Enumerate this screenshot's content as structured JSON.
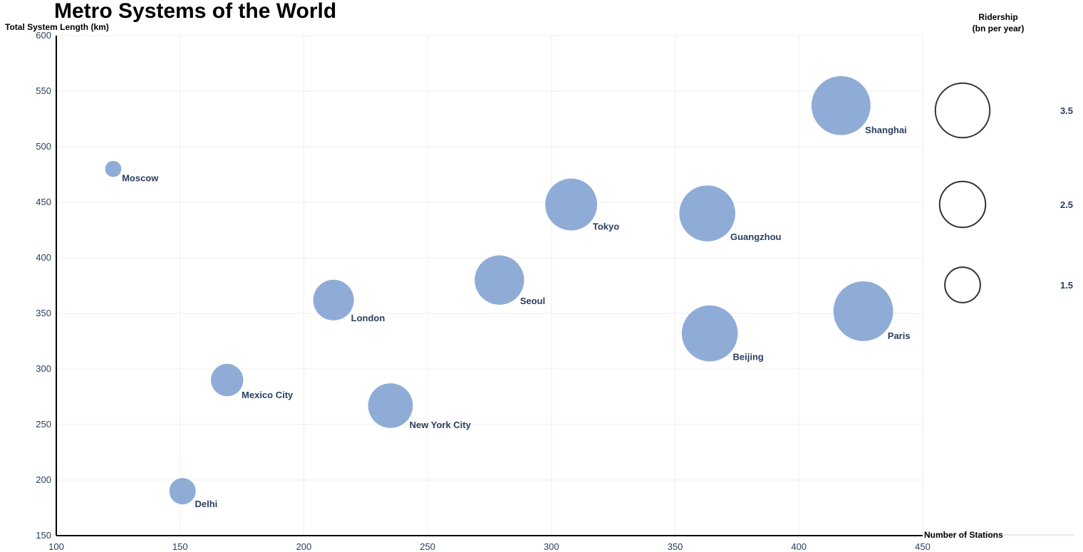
{
  "chart_data": {
    "type": "scatter",
    "title": "Metro Systems of the World",
    "xlabel": "Number of Stations",
    "ylabel": "Total System Length (km)",
    "xlim": [
      100,
      450
    ],
    "ylim": [
      150,
      600
    ],
    "x_ticks": [
      "100",
      "150",
      "200",
      "250",
      "300",
      "350",
      "400",
      "450"
    ],
    "y_ticks": [
      "150",
      "200",
      "250",
      "300",
      "350",
      "400",
      "450",
      "500",
      "550",
      "600"
    ],
    "grid": true,
    "bubble_color": "#7b9ecf",
    "points": [
      {
        "label": "Moscow",
        "x": 123,
        "y": 480,
        "size": 0.3
      },
      {
        "label": "Delhi",
        "x": 151,
        "y": 190,
        "size": 0.8
      },
      {
        "label": "Mexico City",
        "x": 169,
        "y": 290,
        "size": 1.2
      },
      {
        "label": "London",
        "x": 212,
        "y": 362,
        "size": 1.9
      },
      {
        "label": "New York City",
        "x": 235,
        "y": 267,
        "size": 2.3
      },
      {
        "label": "Seoul",
        "x": 279,
        "y": 380,
        "size": 2.8
      },
      {
        "label": "Tokyo",
        "x": 308,
        "y": 448,
        "size": 3.1
      },
      {
        "label": "Guangzhou",
        "x": 363,
        "y": 440,
        "size": 3.6
      },
      {
        "label": "Beijing",
        "x": 364,
        "y": 332,
        "size": 3.6
      },
      {
        "label": "Shanghai",
        "x": 417,
        "y": 537,
        "size": 4.0
      },
      {
        "label": "Paris",
        "x": 426,
        "y": 352,
        "size": 4.1
      }
    ],
    "size_legend": {
      "title_line1": "Ridership",
      "title_line2": "(bn per year)",
      "placement": "right",
      "items": [
        {
          "label": "3.5",
          "value": 3.5
        },
        {
          "label": "2.5",
          "value": 2.5
        },
        {
          "label": "1.5",
          "value": 1.5
        }
      ]
    }
  }
}
